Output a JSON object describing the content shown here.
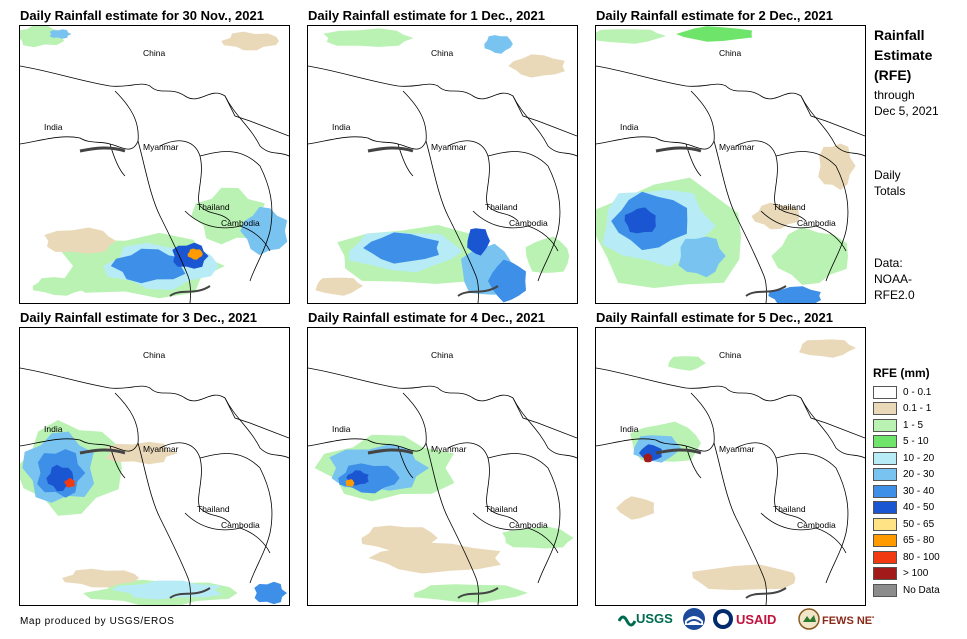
{
  "panels": [
    {
      "title": "Daily Rainfall estimate for 30 Nov., 2021"
    },
    {
      "title": "Daily Rainfall estimate for 1 Dec., 2021"
    },
    {
      "title": "Daily Rainfall estimate for 2 Dec., 2021"
    },
    {
      "title": "Daily Rainfall estimate for 3 Dec., 2021"
    },
    {
      "title": "Daily Rainfall estimate for 4 Dec., 2021"
    },
    {
      "title": "Daily Rainfall estimate for 5 Dec., 2021"
    }
  ],
  "map_labels": {
    "china": "China",
    "india": "India",
    "myanmar": "Myanmar",
    "thailand": "Thailand",
    "cambodia": "Cambodia"
  },
  "sidebar": {
    "title_line1": "Rainfall",
    "title_line2": "Estimate",
    "title_line3": "(RFE)",
    "through": "through",
    "date": "Dec 5, 2021",
    "daily": "Daily",
    "totals": "Totals",
    "data_label": "Data:",
    "source1": "NOAA-",
    "source2": "RFE2.0"
  },
  "legend": {
    "title": "RFE (mm)",
    "items": [
      {
        "label": "0 - 0.1",
        "color": "#ffffff"
      },
      {
        "label": "0.1 - 1",
        "color": "#e9d9b9"
      },
      {
        "label": "1 - 5",
        "color": "#b9f2b2"
      },
      {
        "label": "5 - 10",
        "color": "#6fe46a"
      },
      {
        "label": "10 - 20",
        "color": "#b7ecf6"
      },
      {
        "label": "20 - 30",
        "color": "#79c3f1"
      },
      {
        "label": "30 - 40",
        "color": "#3d8fe8"
      },
      {
        "label": "40 - 50",
        "color": "#1a56d2"
      },
      {
        "label": "50 - 65",
        "color": "#ffe385"
      },
      {
        "label": "65 - 80",
        "color": "#ff9a00"
      },
      {
        "label": "80 - 100",
        "color": "#f23a12"
      },
      {
        "label": "> 100",
        "color": "#a31a1a"
      },
      {
        "label": "No Data",
        "color": "#8c8c8c"
      }
    ]
  },
  "credit": "Map produced by USGS/EROS",
  "logos": {
    "usgs": "USGS",
    "usaid": "USAID",
    "fewsnet": "FEWS NET"
  }
}
